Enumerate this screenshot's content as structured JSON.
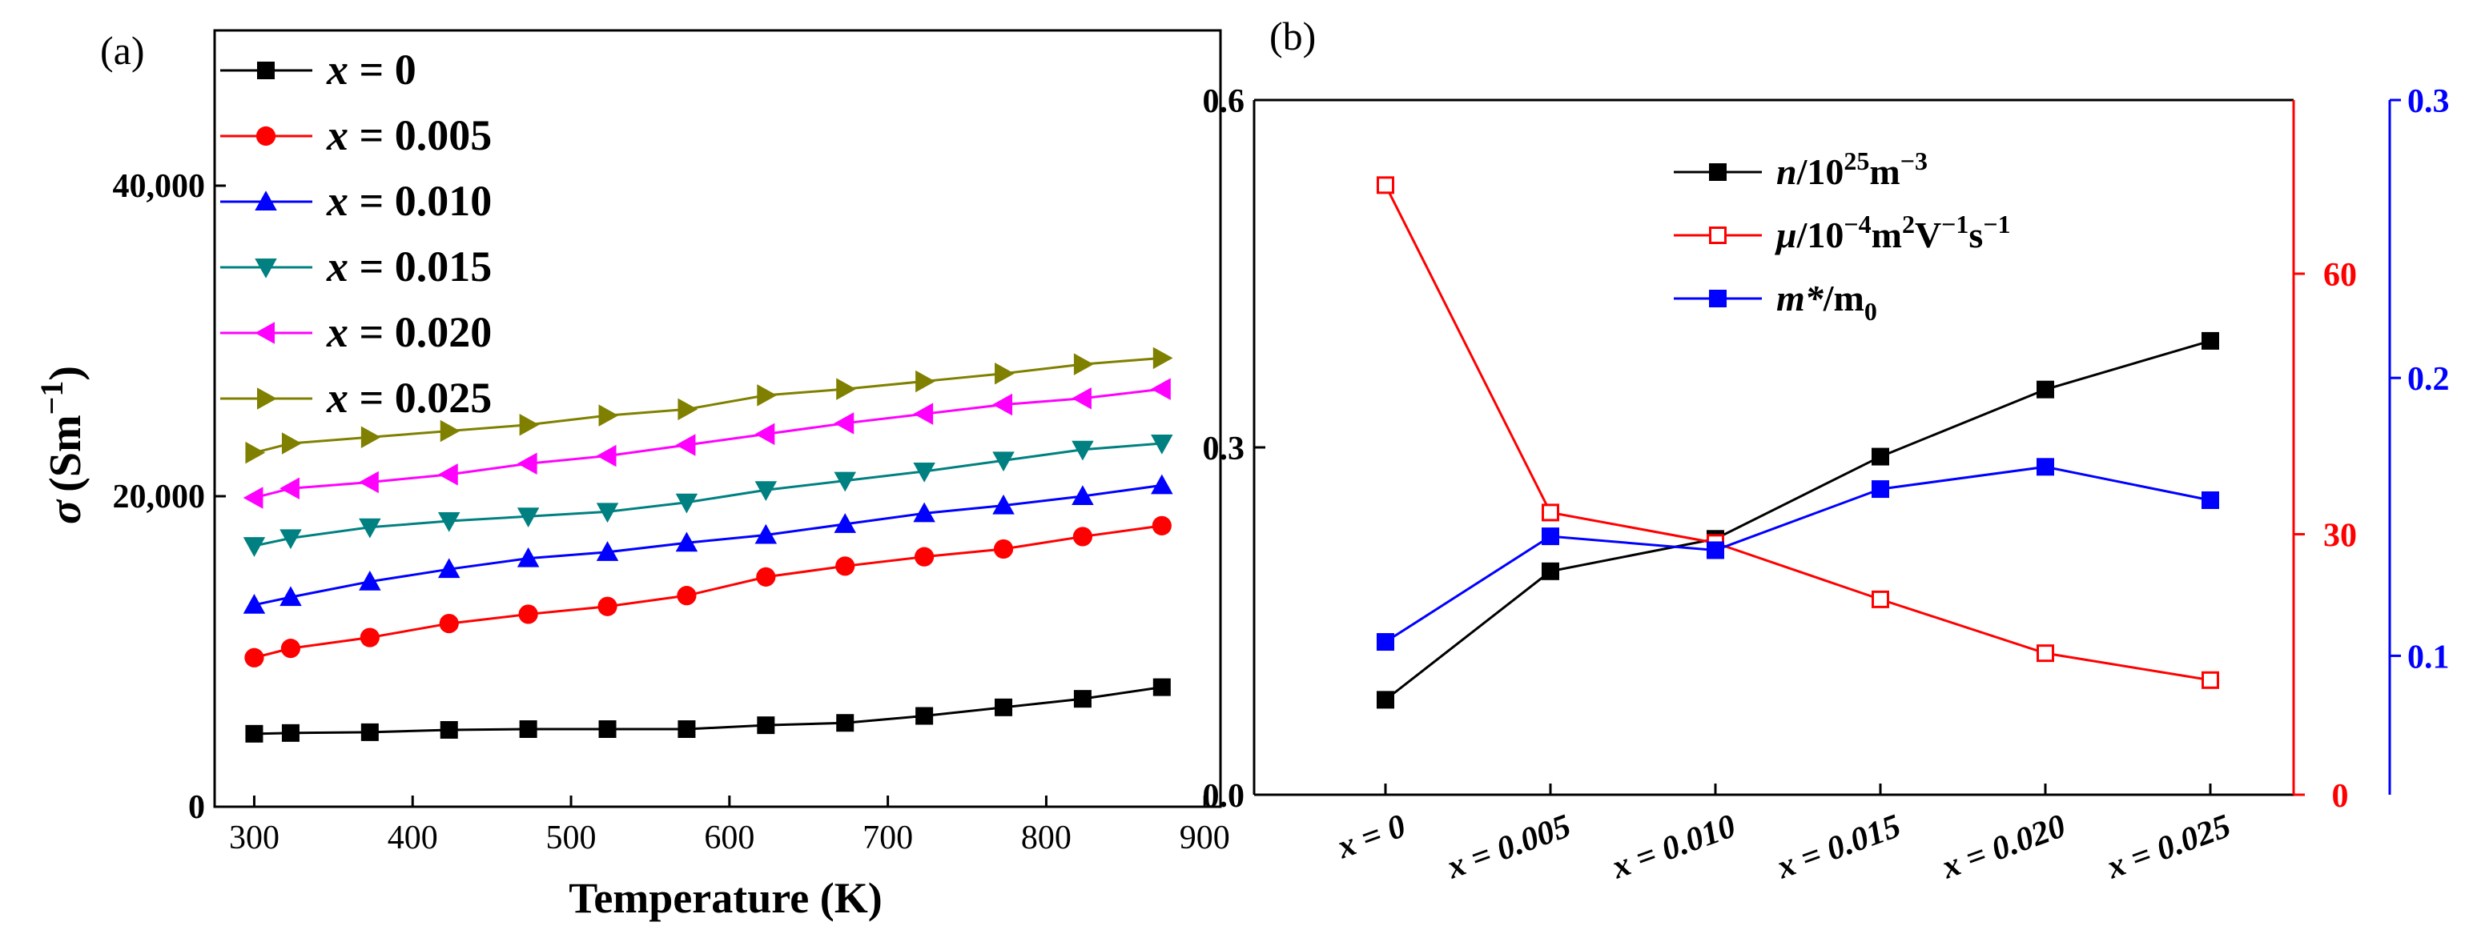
{
  "chart_data": [
    {
      "type": "line",
      "panel_label": "(a)",
      "xlabel": "Temperature (K)",
      "ylabel": {
        "symbol": "σ",
        "unit": "(Sm",
        "exp": "−1",
        "close": ")"
      },
      "xlim": [
        275,
        910
      ],
      "ylim": [
        0,
        50000
      ],
      "x_ticks": [
        300,
        400,
        500,
        600,
        700,
        800,
        900
      ],
      "x_tick_labels": [
        "300",
        "400",
        "500",
        "600",
        "700",
        "800",
        "900"
      ],
      "y_ticks": [
        0,
        20000,
        40000
      ],
      "y_tick_labels": [
        "0",
        "20,000",
        "40,000"
      ],
      "x": [
        300,
        323,
        373,
        423,
        473,
        523,
        573,
        623,
        673,
        723,
        773,
        823,
        873
      ],
      "series": [
        {
          "name": "x = 0",
          "legend_var": "x",
          "legend_val": " = 0",
          "color": "#000000",
          "marker": "square",
          "values": [
            4700,
            4750,
            4800,
            4950,
            5000,
            5000,
            5000,
            5250,
            5400,
            5850,
            6400,
            6950,
            7700
          ]
        },
        {
          "name": "x = 0.005",
          "legend_var": "x",
          "legend_val": " = 0.005",
          "color": "#ff0000",
          "marker": "circle",
          "values": [
            9600,
            10200,
            10900,
            11800,
            12400,
            12900,
            13600,
            14800,
            15500,
            16100,
            16600,
            17400,
            18100
          ]
        },
        {
          "name": "x = 0.010",
          "legend_var": "x",
          "legend_val": " = 0.010",
          "color": "#0000ff",
          "marker": "triangle-up",
          "values": [
            13000,
            13500,
            14500,
            15300,
            16000,
            16400,
            17000,
            17500,
            18200,
            18900,
            19400,
            20000,
            20700
          ]
        },
        {
          "name": "x = 0.015",
          "legend_var": "x",
          "legend_val": " = 0.015",
          "color": "#008080",
          "marker": "triangle-down",
          "values": [
            16800,
            17300,
            18000,
            18400,
            18700,
            19000,
            19600,
            20400,
            21000,
            21600,
            22300,
            23000,
            23400
          ]
        },
        {
          "name": "x = 0.020",
          "legend_var": "x",
          "legend_val": " = 0.020",
          "color": "#ff00ff",
          "marker": "triangle-left",
          "values": [
            19900,
            20500,
            20900,
            21400,
            22100,
            22600,
            23300,
            24000,
            24700,
            25300,
            25900,
            26300,
            26900
          ]
        },
        {
          "name": "x = 0.025",
          "legend_var": "x",
          "legend_val": " = 0.025",
          "color": "#808000",
          "marker": "triangle-right",
          "values": [
            22800,
            23400,
            23800,
            24200,
            24600,
            25200,
            25600,
            26500,
            26900,
            27400,
            27900,
            28500,
            28900
          ]
        }
      ],
      "legend": "top-left"
    },
    {
      "type": "line",
      "panel_label": "(b)",
      "categories": [
        "x = 0",
        "x = 0.005",
        "x = 0.010",
        "x = 0.015",
        "x = 0.020",
        "x = 0.025"
      ],
      "category_parts": [
        {
          "var": "x",
          "val": " = 0"
        },
        {
          "var": "x",
          "val": " = 0.005"
        },
        {
          "var": "x",
          "val": " = 0.010"
        },
        {
          "var": "x",
          "val": " = 0.015"
        },
        {
          "var": "x",
          "val": " = 0.020"
        },
        {
          "var": "x",
          "val": " = 0.025"
        }
      ],
      "y_axes": [
        {
          "side": "left",
          "color": "#000000",
          "ylim": [
            0,
            0.6
          ],
          "ticks": [
            0,
            0.3,
            0.6
          ],
          "tick_labels": [
            "0.0",
            "0.3",
            "0.6"
          ]
        },
        {
          "side": "right",
          "color": "#ff0000",
          "ylim": [
            0,
            80
          ],
          "ticks": [
            0,
            30,
            60
          ],
          "tick_labels": [
            "0",
            "30",
            "60"
          ]
        },
        {
          "side": "right-outer",
          "color": "#0000ff",
          "ylim": [
            0.05,
            0.3
          ],
          "ticks": [
            0.1,
            0.2,
            0.3
          ],
          "tick_labels": [
            "0.1",
            "0.2",
            "0.3"
          ]
        }
      ],
      "series": [
        {
          "name": "n/10^25 m^-3",
          "axis": 0,
          "color": "#000000",
          "marker": "square-filled",
          "legend_parts": [
            [
              "n",
              "i"
            ],
            [
              "/10",
              ""
            ],
            [
              "25",
              "sup"
            ],
            [
              "m",
              ""
            ],
            [
              "−3",
              "sup"
            ]
          ],
          "values": [
            0.082,
            0.193,
            0.221,
            0.292,
            0.35,
            0.392
          ]
        },
        {
          "name": "μ/10^-4 m^2V^-1s^-1",
          "axis": 1,
          "color": "#ff0000",
          "marker": "square-open",
          "legend_parts": [
            [
              "μ",
              "i"
            ],
            [
              "/10",
              ""
            ],
            [
              "−4",
              "sup"
            ],
            [
              "m",
              ""
            ],
            [
              "2",
              "sup"
            ],
            [
              "V",
              ""
            ],
            [
              "−1",
              "sup"
            ],
            [
              "s",
              ""
            ],
            [
              "−1",
              "sup"
            ]
          ],
          "values": [
            70.2,
            32.5,
            29.0,
            22.5,
            16.3,
            13.2
          ]
        },
        {
          "name": "m*/m0",
          "axis": 2,
          "color": "#0000ff",
          "marker": "square-filled",
          "legend_parts": [
            [
              "m*",
              "i"
            ],
            [
              "/m",
              ""
            ],
            [
              "0",
              "sub"
            ]
          ],
          "values": [
            0.105,
            0.143,
            0.138,
            0.16,
            0.168,
            0.156
          ]
        }
      ],
      "legend": "top-center"
    }
  ]
}
